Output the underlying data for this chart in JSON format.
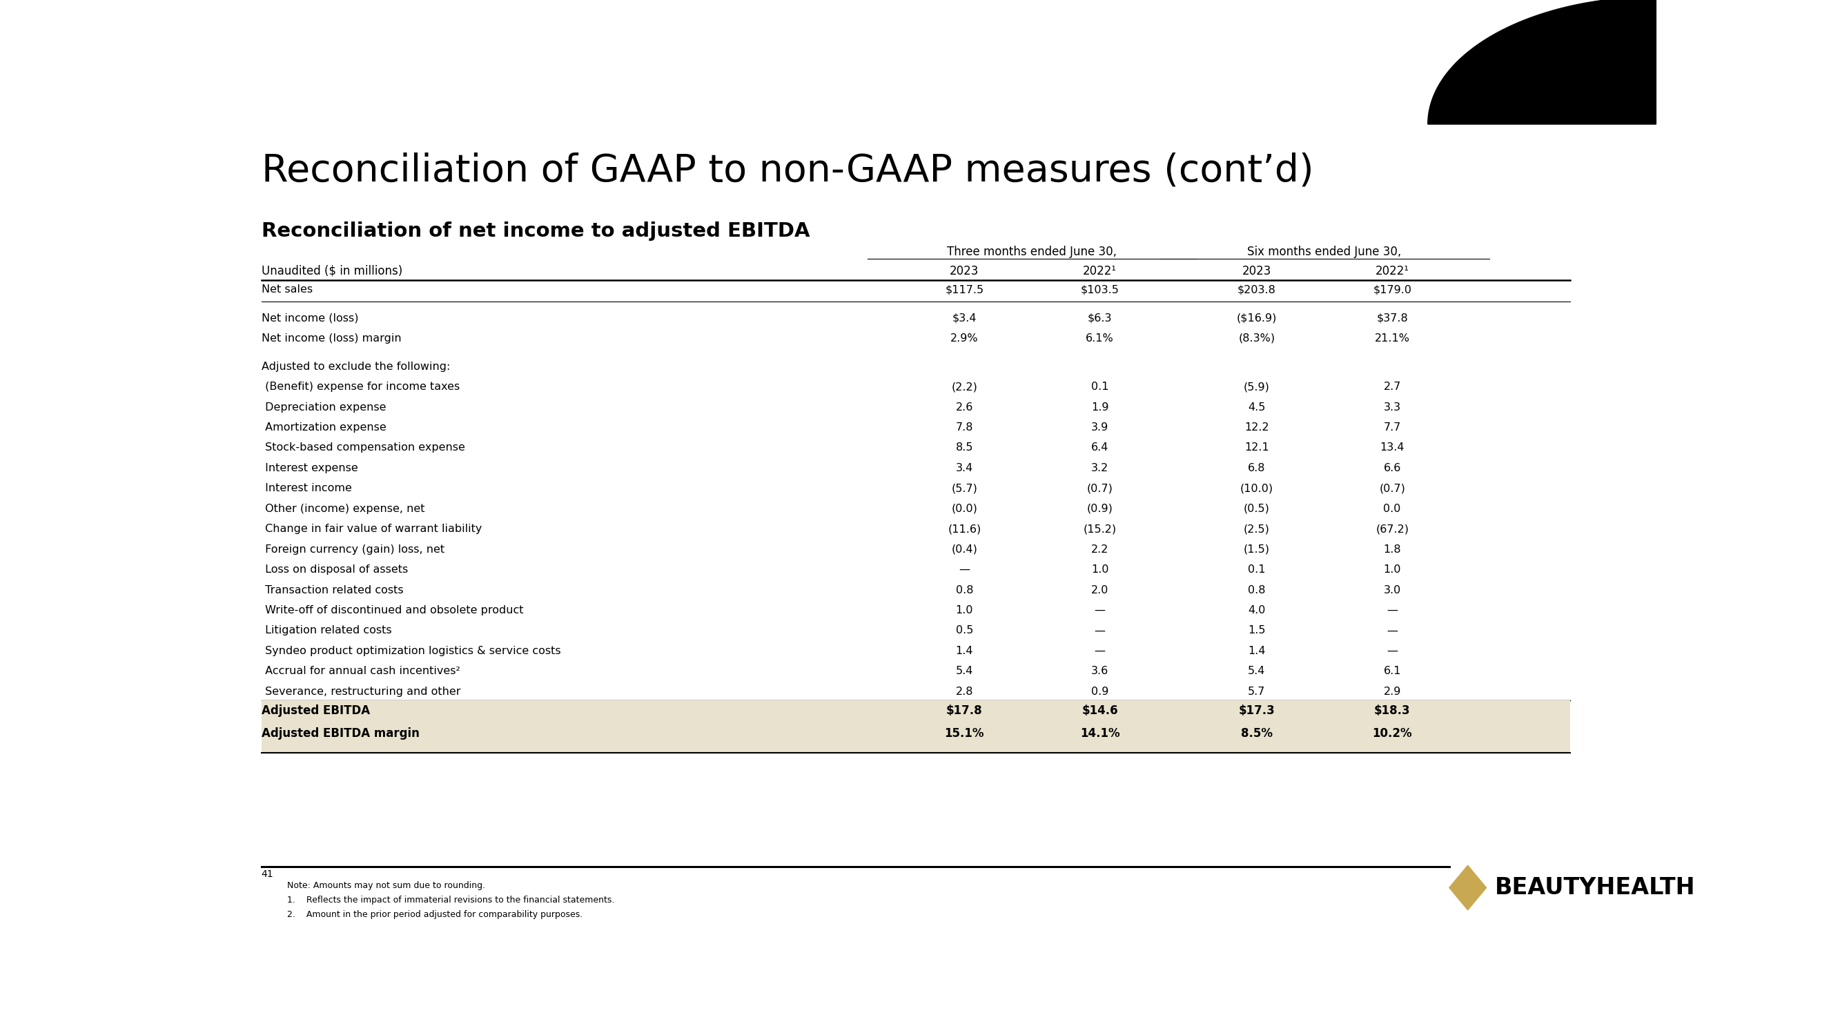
{
  "title": "Reconciliation of GAAP to non-GAAP measures (cont’d)",
  "subtitle": "Reconciliation of net income to adjusted EBITDA",
  "bg_color": "#FFFFFF",
  "table_footer_bg": "#E8E2CE",
  "col_header_group1": "Three months ended June 30,",
  "col_header_group2": "Six months ended June 30,",
  "col_headers": [
    "Unaudited ($ in millions)",
    "2023",
    "2022¹",
    "2023",
    "2022¹"
  ],
  "rows": [
    {
      "label": "Net sales",
      "vals": [
        "$117.5",
        "$103.5",
        "$203.8",
        "$179.0"
      ],
      "bold": false,
      "gap_after": true,
      "line_below": true
    },
    {
      "label": "Net income (loss)",
      "vals": [
        "$3.4",
        "$6.3",
        "($16.9)",
        "$37.8"
      ],
      "bold": false,
      "gap_after": false,
      "line_below": false
    },
    {
      "label": "Net income (loss) margin",
      "vals": [
        "2.9%",
        "6.1%",
        "(8.3%)",
        "21.1%"
      ],
      "bold": false,
      "gap_after": true,
      "line_below": false
    },
    {
      "label": "Adjusted to exclude the following:",
      "vals": [
        "",
        "",
        "",
        ""
      ],
      "bold": false,
      "gap_after": false,
      "line_below": false
    },
    {
      "label": " (Benefit) expense for income taxes",
      "vals": [
        "(2.2)",
        "0.1",
        "(5.9)",
        "2.7"
      ],
      "bold": false,
      "gap_after": false,
      "line_below": false
    },
    {
      "label": " Depreciation expense",
      "vals": [
        "2.6",
        "1.9",
        "4.5",
        "3.3"
      ],
      "bold": false,
      "gap_after": false,
      "line_below": false
    },
    {
      "label": " Amortization expense",
      "vals": [
        "7.8",
        "3.9",
        "12.2",
        "7.7"
      ],
      "bold": false,
      "gap_after": false,
      "line_below": false
    },
    {
      "label": " Stock-based compensation expense",
      "vals": [
        "8.5",
        "6.4",
        "12.1",
        "13.4"
      ],
      "bold": false,
      "gap_after": false,
      "line_below": false
    },
    {
      "label": " Interest expense",
      "vals": [
        "3.4",
        "3.2",
        "6.8",
        "6.6"
      ],
      "bold": false,
      "gap_after": false,
      "line_below": false
    },
    {
      "label": " Interest income",
      "vals": [
        "(5.7)",
        "(0.7)",
        "(10.0)",
        "(0.7)"
      ],
      "bold": false,
      "gap_after": false,
      "line_below": false
    },
    {
      "label": " Other (income) expense, net",
      "vals": [
        "(0.0)",
        "(0.9)",
        "(0.5)",
        "0.0"
      ],
      "bold": false,
      "gap_after": false,
      "line_below": false
    },
    {
      "label": " Change in fair value of warrant liability",
      "vals": [
        "(11.6)",
        "(15.2)",
        "(2.5)",
        "(67.2)"
      ],
      "bold": false,
      "gap_after": false,
      "line_below": false
    },
    {
      "label": " Foreign currency (gain) loss, net",
      "vals": [
        "(0.4)",
        "2.2",
        "(1.5)",
        "1.8"
      ],
      "bold": false,
      "gap_after": false,
      "line_below": false
    },
    {
      "label": " Loss on disposal of assets",
      "vals": [
        "—",
        "1.0",
        "0.1",
        "1.0"
      ],
      "bold": false,
      "gap_after": false,
      "line_below": false
    },
    {
      "label": " Transaction related costs",
      "vals": [
        "0.8",
        "2.0",
        "0.8",
        "3.0"
      ],
      "bold": false,
      "gap_after": false,
      "line_below": false
    },
    {
      "label": " Write-off of discontinued and obsolete product",
      "vals": [
        "1.0",
        "—",
        "4.0",
        "—"
      ],
      "bold": false,
      "gap_after": false,
      "line_below": false
    },
    {
      "label": " Litigation related costs",
      "vals": [
        "0.5",
        "—",
        "1.5",
        "—"
      ],
      "bold": false,
      "gap_after": false,
      "line_below": false
    },
    {
      "label": " Syndeo product optimization logistics & service costs",
      "vals": [
        "1.4",
        "—",
        "1.4",
        "—"
      ],
      "bold": false,
      "gap_after": false,
      "line_below": false
    },
    {
      "label": " Accrual for annual cash incentives²",
      "vals": [
        "5.4",
        "3.6",
        "5.4",
        "6.1"
      ],
      "bold": false,
      "gap_after": false,
      "line_below": false
    },
    {
      "label": " Severance, restructuring and other",
      "vals": [
        "2.8",
        "0.9",
        "5.7",
        "2.9"
      ],
      "bold": false,
      "gap_after": false,
      "line_below": false
    }
  ],
  "footer_rows": [
    {
      "label": "Adjusted EBITDA",
      "vals": [
        "$17.8",
        "$14.6",
        "$17.3",
        "$18.3"
      ]
    },
    {
      "label": "Adjusted EBITDA margin",
      "vals": [
        "15.1%",
        "14.1%",
        "8.5%",
        "10.2%"
      ]
    }
  ],
  "note_line": "Note: Amounts may not sum due to rounding.",
  "footnotes": [
    "1.    Reflects the impact of immaterial revisions to the financial statements.",
    "2.    Amount in the prior period adjusted for comparability purposes."
  ],
  "page_number": "41",
  "brand_name": "BEAUTYHEALTH",
  "diamond_color": "#C8A951"
}
